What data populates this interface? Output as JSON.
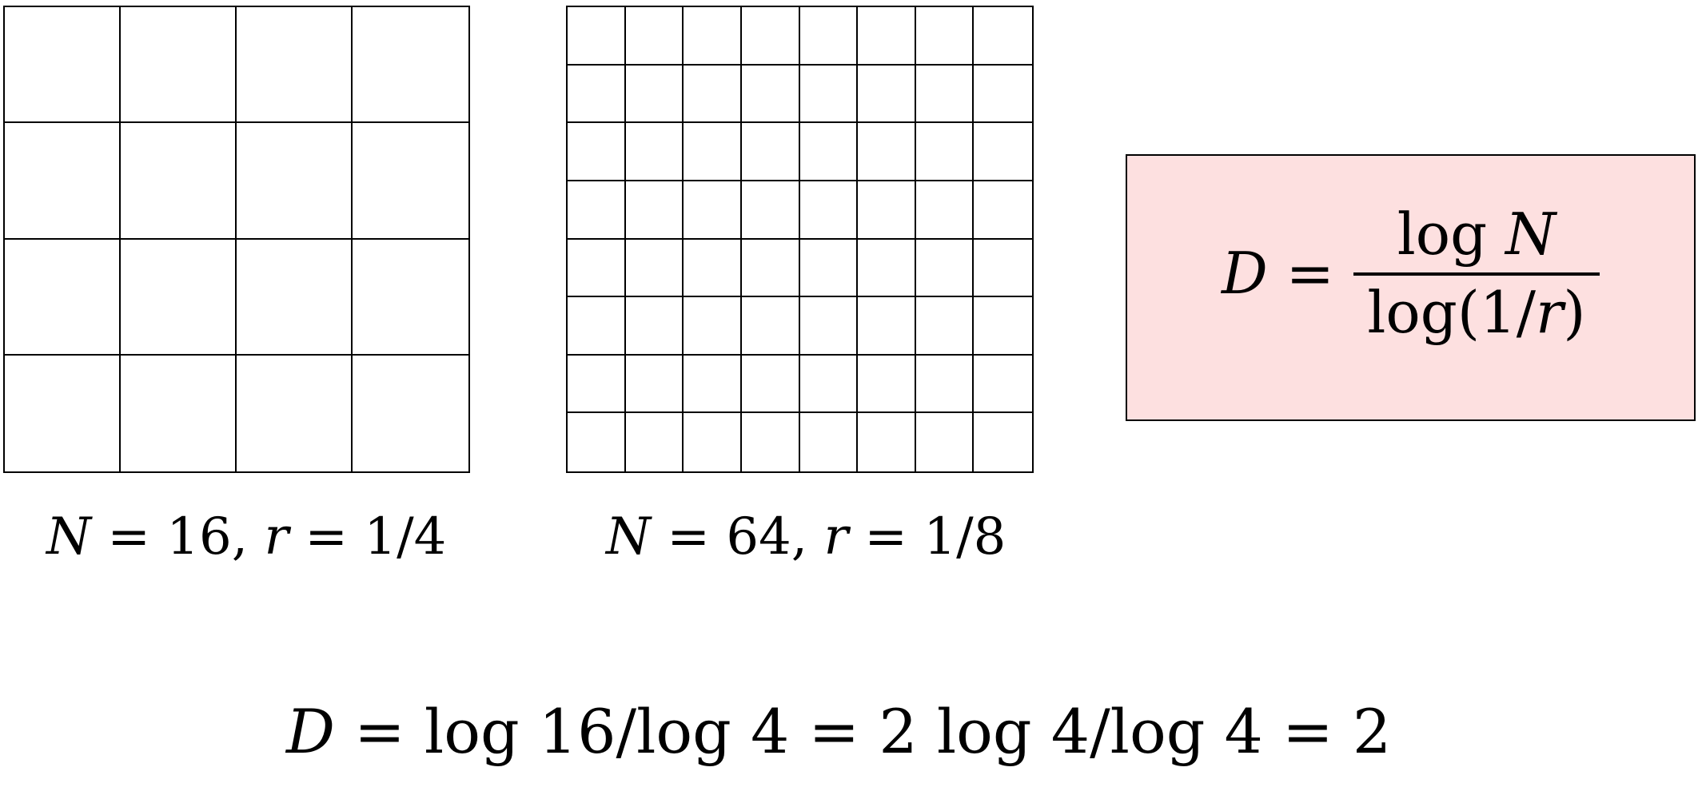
{
  "grids": [
    {
      "rows": 4,
      "cols": 4,
      "caption": {
        "n_var": "N",
        "n_rest": " = 16, ",
        "r_var": "r",
        "r_rest": " = 1/4"
      }
    },
    {
      "rows": 8,
      "cols": 8,
      "caption": {
        "n_var": "N",
        "n_rest": " = 64, ",
        "r_var": "r",
        "r_rest": " = 1/8"
      }
    }
  ],
  "formula": {
    "lhs_var": "D",
    "equals": " =",
    "numerator_fn": "log ",
    "numerator_var": "N",
    "denominator_pre": "log(1/",
    "denominator_var": "r",
    "denominator_post": ")",
    "background": "#fde0e0"
  },
  "bottom_equation": {
    "var": "D",
    "rest": " = log 16/log 4 = 2 log 4/log 4 = 2"
  }
}
